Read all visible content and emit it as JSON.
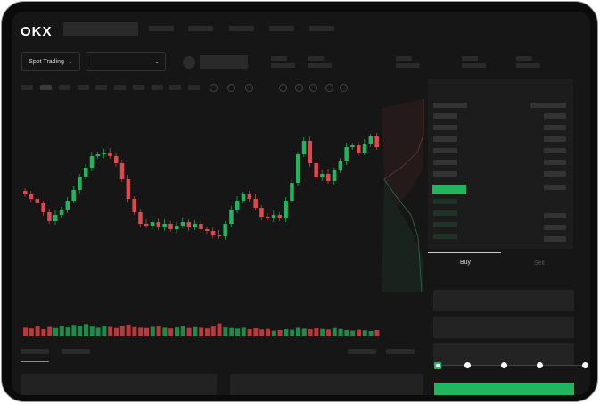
{
  "brand": {
    "logo": "OKX",
    "accent_green": "#22b55f",
    "accent_red": "#e0484b"
  },
  "toolbar": {
    "market_select_label": "Spot Trading",
    "pair_select_value": ""
  },
  "order_form": {
    "tabs": [
      {
        "label": "Buy",
        "active": true
      },
      {
        "label": "Sell",
        "active": false
      }
    ],
    "slider_percent": 0,
    "slider_stops": 5
  },
  "icons": [
    "chevron-down-icon",
    "orderbook-both-icon",
    "orderbook-buy-icon",
    "orderbook-sell-icon"
  ],
  "chart_data": {
    "type": "candlestick",
    "closes": [
      95,
      90,
      85,
      75,
      65,
      72,
      78,
      88,
      100,
      115,
      125,
      138,
      140,
      142,
      138,
      130,
      112,
      90,
      75,
      62,
      60,
      64,
      58,
      62,
      56,
      60,
      64,
      58,
      62,
      56,
      54,
      50,
      48,
      62,
      78,
      88,
      95,
      90,
      80,
      70,
      68,
      72,
      68,
      88,
      108,
      140,
      155,
      130,
      114,
      118,
      110,
      122,
      132,
      148,
      150,
      142,
      152,
      160,
      148
    ],
    "volumes": [
      60,
      55,
      70,
      50,
      65,
      58,
      72,
      62,
      80,
      75,
      85,
      68,
      60,
      72,
      66,
      58,
      70,
      82,
      64,
      60,
      58,
      66,
      72,
      60,
      55,
      62,
      70,
      58,
      64,
      60,
      55,
      68,
      90,
      62,
      58,
      54,
      60,
      50,
      56,
      48,
      52,
      40,
      44,
      50,
      46,
      60,
      54,
      50,
      56,
      52,
      48,
      58,
      52,
      44,
      40,
      46,
      42,
      38,
      44
    ]
  }
}
